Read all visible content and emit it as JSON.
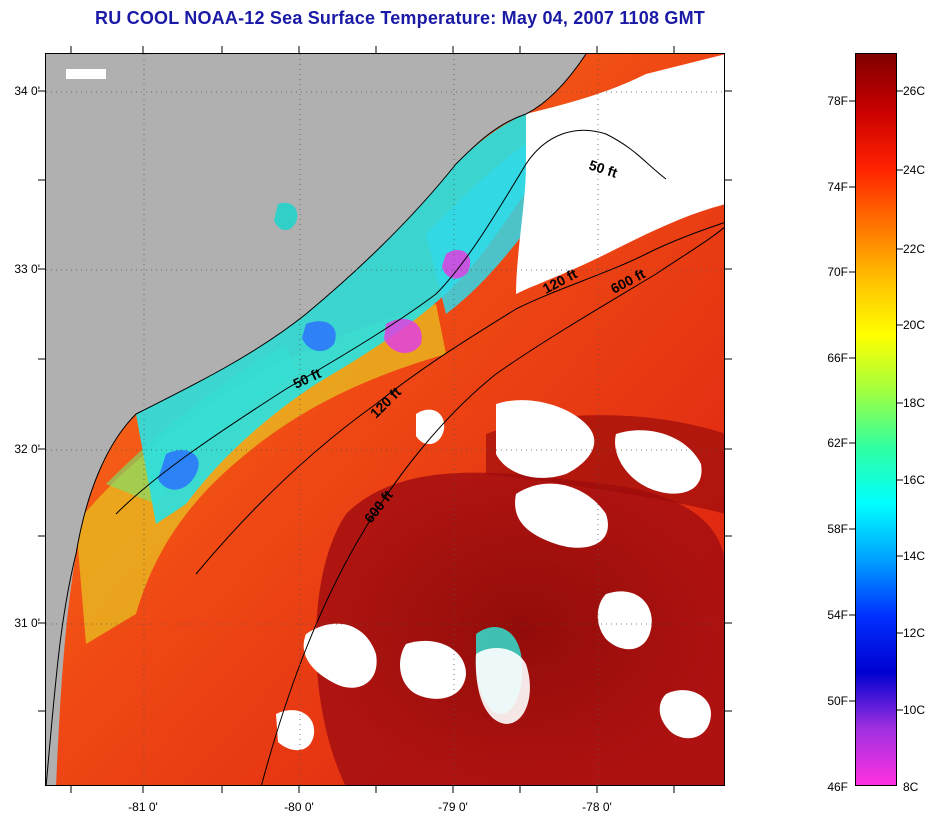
{
  "title": "RU COOL  NOAA-12  Sea Surface Temperature:  May 04, 2007 1108 GMT",
  "map": {
    "lat_labels": [
      "34 0'",
      "33 0'",
      "32 0'",
      "31 0'"
    ],
    "lon_labels": [
      "-81 0'",
      "-80 0'",
      "-79 0'",
      "-78 0'"
    ],
    "contour_labels": [
      "50 ft",
      "120 ft",
      "600 ft",
      "50 ft",
      "120 ft",
      "600 ft"
    ],
    "colors": {
      "land": "#b0b0b0",
      "cloud": "#ffffff",
      "warm": "#e8291a",
      "hot": "#8c0a0a",
      "cool": "#2de0e0"
    }
  },
  "colorbar": {
    "fahrenheit_labels": [
      "78F",
      "74F",
      "70F",
      "66F",
      "62F",
      "58F",
      "54F",
      "50F",
      "46F"
    ],
    "celsius_labels": [
      "26C",
      "24C",
      "22C",
      "20C",
      "18C",
      "16C",
      "14C",
      "12C",
      "10C",
      "8C"
    ],
    "stops": [
      "#800000",
      "#c80000",
      "#ff2000",
      "#ff7000",
      "#ffc000",
      "#ffff00",
      "#a0ff40",
      "#30ffa0",
      "#00ffff",
      "#00a0ff",
      "#0030ff",
      "#0000d0",
      "#a030e0",
      "#ff30e0"
    ]
  }
}
